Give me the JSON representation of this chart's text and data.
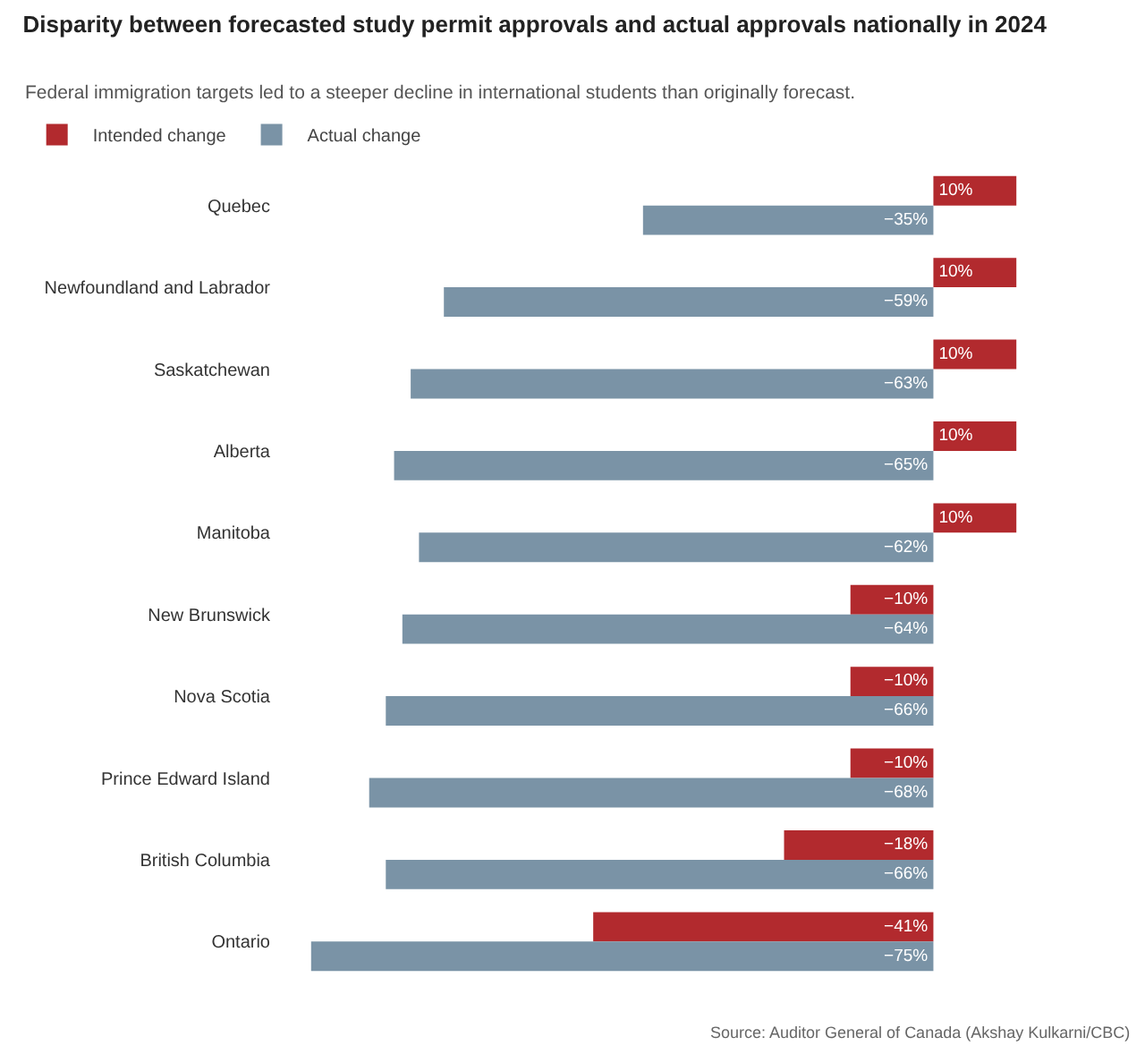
{
  "chart_data": {
    "type": "bar",
    "orientation": "horizontal",
    "title": "Disparity between forecasted study permit approvals and actual approvals nationally in 2024",
    "subtitle": "Federal immigration targets led to a steeper decline in international students than originally forecast.",
    "categories": [
      "Quebec",
      "Newfoundland and Labrador",
      "Saskatchewan",
      "Alberta",
      "Manitoba",
      "New Brunswick",
      "Nova Scotia",
      "Prince Edward Island",
      "British Columbia",
      "Ontario"
    ],
    "series": [
      {
        "name": "Intended change",
        "color": "#b22a2e",
        "values": [
          10,
          10,
          10,
          10,
          10,
          -10,
          -10,
          -10,
          -18,
          -41
        ],
        "value_labels": [
          "10%",
          "10%",
          "10%",
          "10%",
          "10%",
          "−10%",
          "−10%",
          "−10%",
          "−18%",
          "−41%"
        ]
      },
      {
        "name": "Actual change",
        "color": "#7a93a6",
        "values": [
          -35,
          -59,
          -63,
          -65,
          -62,
          -64,
          -66,
          -68,
          -66,
          -75
        ],
        "value_labels": [
          "−35%",
          "−59%",
          "−63%",
          "−65%",
          "−62%",
          "−64%",
          "−66%",
          "−68%",
          "−66%",
          "−75%"
        ]
      }
    ],
    "tick_labels": "y",
    "grid": false,
    "legend": "top left",
    "annotations": [
      "Source: Auditor General of Canada (Akshay Kulkarni/CBC)"
    ]
  }
}
